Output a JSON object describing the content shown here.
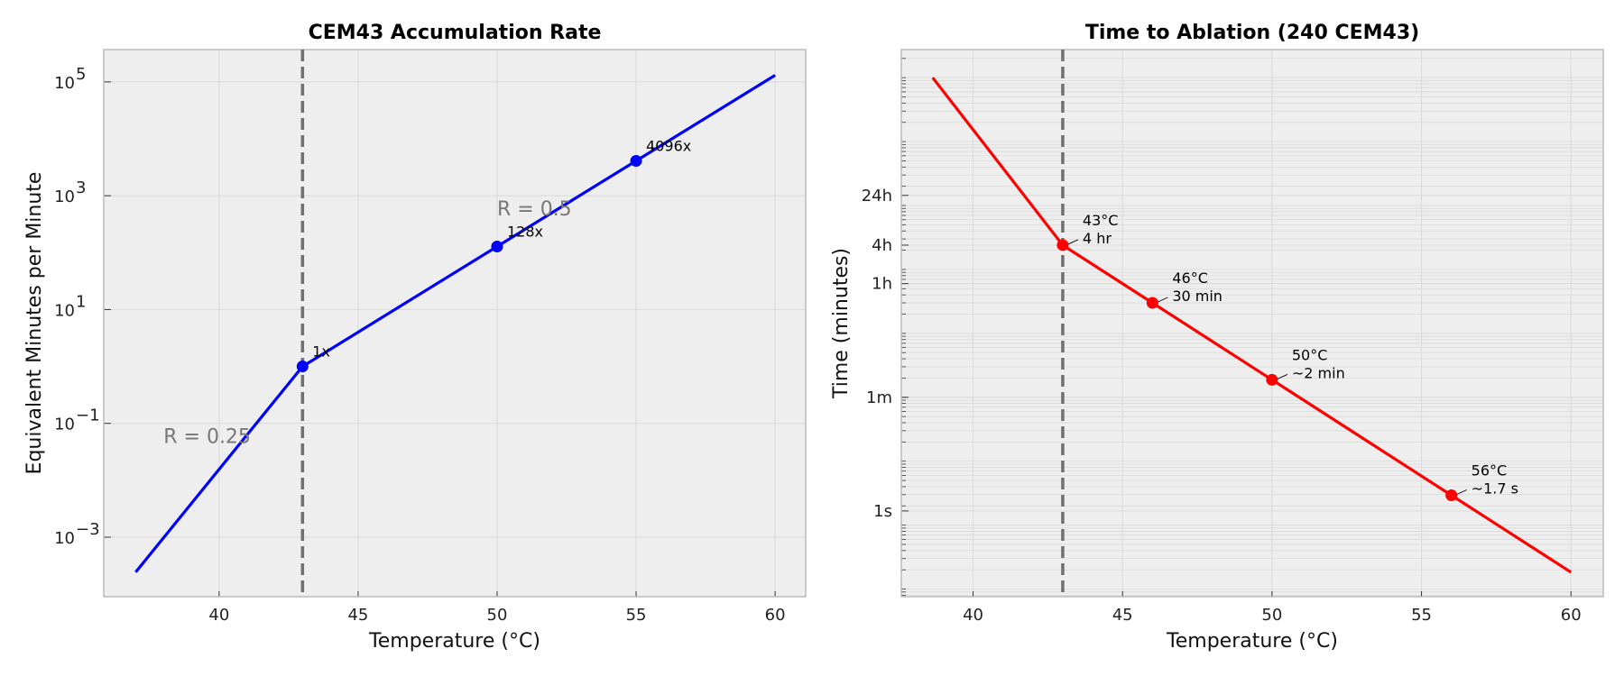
{
  "chart_data": [
    {
      "type": "line",
      "title": "CEM43 Accumulation Rate",
      "xlabel": "Temperature (°C)",
      "ylabel": "Equivalent Minutes per Minute",
      "yscale": "log",
      "xlim": [
        35.85,
        61.1
      ],
      "ylim": [
        9e-05,
        370000
      ],
      "xticks": [
        40,
        45,
        50,
        55,
        60
      ],
      "yticks": [
        0.001,
        0.1,
        10,
        1000,
        100000
      ],
      "ytick_labels": [
        {
          "base": "10",
          "exp": "−3"
        },
        {
          "base": "10",
          "exp": "−1"
        },
        {
          "base": "10",
          "exp": "1"
        },
        {
          "base": "10",
          "exp": "3"
        },
        {
          "base": "10",
          "exp": "5"
        }
      ],
      "grid": true,
      "color": "#0000ff",
      "series": [
        {
          "x": [
            37,
            43,
            50,
            55,
            60
          ],
          "y": [
            0.000244,
            1,
            128,
            4096,
            131072
          ]
        }
      ],
      "markers": [
        {
          "x": 43,
          "y": 1,
          "label": "1x"
        },
        {
          "x": 50,
          "y": 128,
          "label": "128x"
        },
        {
          "x": 55,
          "y": 4096,
          "label": "4096x"
        }
      ],
      "vline": {
        "x": 43,
        "color": "#707070",
        "style": "dashed"
      },
      "text_annotations": [
        {
          "x": 38,
          "y": 0.06,
          "text": "R = 0.25"
        },
        {
          "x": 50,
          "y": 600,
          "text": "R = 0.5"
        }
      ]
    },
    {
      "type": "line",
      "title": "Time to Ablation (240 CEM43)",
      "xlabel": "Temperature (°C)",
      "ylabel": "Time (minutes)",
      "yscale": "log",
      "xlim": [
        37.6,
        61.08
      ],
      "ylim": [
        0.00076,
        275000
      ],
      "xticks": [
        40,
        45,
        50,
        55,
        60
      ],
      "yticks": [
        0.016667,
        1,
        60,
        240,
        1440
      ],
      "ytick_labels": [
        "1s",
        "1m",
        "1h",
        "4h",
        "24h"
      ],
      "grid": true,
      "minor_grid": true,
      "color": "#ff0000",
      "series": [
        {
          "x": [
            38.65,
            43,
            46,
            50,
            56,
            60
          ],
          "y": [
            100000,
            240,
            30,
            1.875,
            0.0293,
            0.00183
          ]
        }
      ],
      "markers": [
        {
          "x": 43,
          "y": 240,
          "label": [
            "43°C",
            "4 hr"
          ]
        },
        {
          "x": 46,
          "y": 30,
          "label": [
            "46°C",
            "30 min"
          ]
        },
        {
          "x": 50,
          "y": 1.875,
          "label": [
            "50°C",
            "~2 min"
          ]
        },
        {
          "x": 56,
          "y": 0.0293,
          "label": [
            "56°C",
            "~1.7 s"
          ]
        }
      ],
      "vline": {
        "x": 43,
        "color": "#707070",
        "style": "dashed"
      }
    }
  ]
}
